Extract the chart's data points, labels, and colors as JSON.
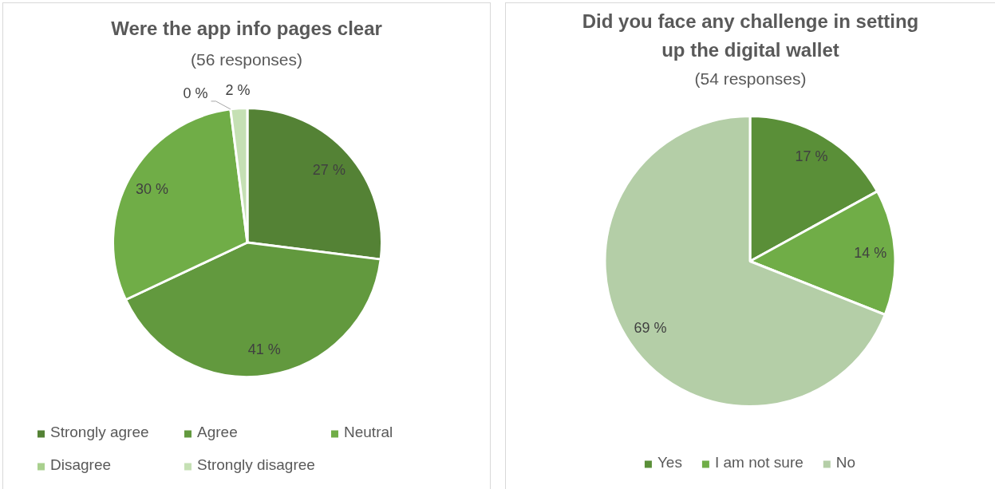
{
  "chart_data": [
    {
      "type": "pie",
      "title": "Were the app info pages clear",
      "subtitle": "(56 responses)",
      "categories": [
        "Strongly agree",
        "Agree",
        "Neutral",
        "Disagree",
        "Strongly disagree"
      ],
      "values": [
        27,
        41,
        30,
        0,
        2
      ],
      "colors": [
        "#548235",
        "#62993e",
        "#70ad47",
        "#a9d08e",
        "#c5e0b4"
      ],
      "value_labels": [
        "27 %",
        "41 %",
        "30 %",
        "0 %",
        "2 %"
      ],
      "legend": "bottom"
    },
    {
      "type": "pie",
      "title": "Did you face any challenge in setting up the digital wallet",
      "subtitle": "(54 responses)",
      "categories": [
        "Yes",
        "I am not sure",
        "No"
      ],
      "values": [
        17,
        14,
        69
      ],
      "colors": [
        "#5a8f38",
        "#70ad47",
        "#b4cea7"
      ],
      "value_labels": [
        "17 %",
        "14 %",
        "69 %"
      ],
      "legend": "bottom"
    }
  ]
}
